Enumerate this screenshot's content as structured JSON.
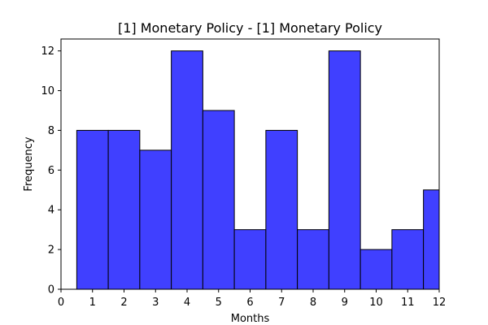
{
  "chart_data": {
    "type": "bar",
    "title": "[1] Monetary Policy - [1] Monetary Policy",
    "xlabel": "Months",
    "ylabel": "Frequency",
    "x": [
      1,
      2,
      3,
      4,
      5,
      6,
      7,
      8,
      9,
      10,
      11,
      12
    ],
    "values": [
      8,
      8,
      7,
      12,
      9,
      3,
      8,
      3,
      12,
      2,
      3,
      5
    ],
    "bin_width": 1,
    "xlim": [
      0,
      12
    ],
    "ylim": [
      0,
      12.6
    ],
    "xticks": [
      "0",
      "1",
      "2",
      "3",
      "4",
      "5",
      "6",
      "7",
      "8",
      "9",
      "10",
      "11",
      "12"
    ],
    "yticks": [
      "0",
      "2",
      "4",
      "6",
      "8",
      "10",
      "12"
    ],
    "bar_color": "#4040ff",
    "edge_color": "#000000",
    "grid": false,
    "legend": "none"
  }
}
